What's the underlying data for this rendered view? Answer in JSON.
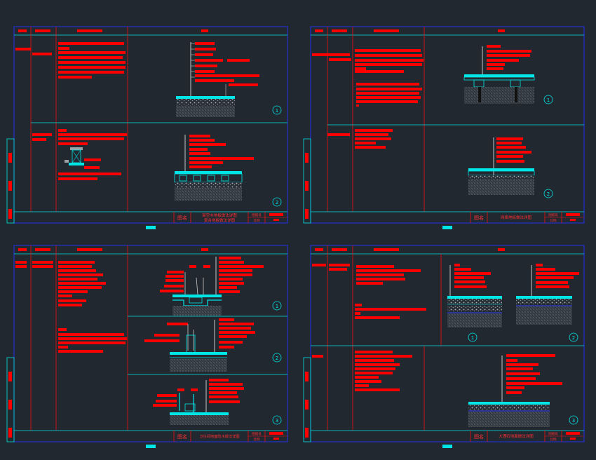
{
  "app": {
    "background": "#212830",
    "colors": {
      "frame": "#2233ee",
      "grid": "#00e5e5",
      "divider": "#ee1111",
      "text_bar": "#ff0000",
      "leader": "#c8c8c8",
      "hatch": "#9aa0a6",
      "detail_marker": "#00e5e5",
      "page_tab": "#00e5e5"
    }
  },
  "sheets": [
    {
      "id": "sheet-1",
      "title_block": {
        "label": "图名",
        "name_line1": "架空木地板做法详图",
        "name_line2": "复合地板做法详图",
        "fields": [
          "图纸号",
          "比例"
        ]
      },
      "detail_markers": [
        "1",
        "2"
      ]
    },
    {
      "id": "sheet-2",
      "title_block": {
        "label": "图名",
        "name_line1": "网络地板做法详图",
        "name_line2": "",
        "fields": [
          "图纸号",
          "比例"
        ]
      },
      "detail_markers": [
        "1",
        "2"
      ]
    },
    {
      "id": "sheet-3",
      "title_block": {
        "label": "图名",
        "name_line1": "卫生间地面防水做法详图",
        "name_line2": "",
        "fields": [
          "图纸号",
          "比例"
        ]
      },
      "detail_markers": [
        "1",
        "2",
        "3"
      ]
    },
    {
      "id": "sheet-4",
      "title_block": {
        "label": "图名",
        "name_line1": "大理石地面做法详图",
        "name_line2": "",
        "fields": [
          "图纸号",
          "比例"
        ]
      },
      "detail_markers": [
        "1",
        "2",
        "3"
      ]
    }
  ]
}
